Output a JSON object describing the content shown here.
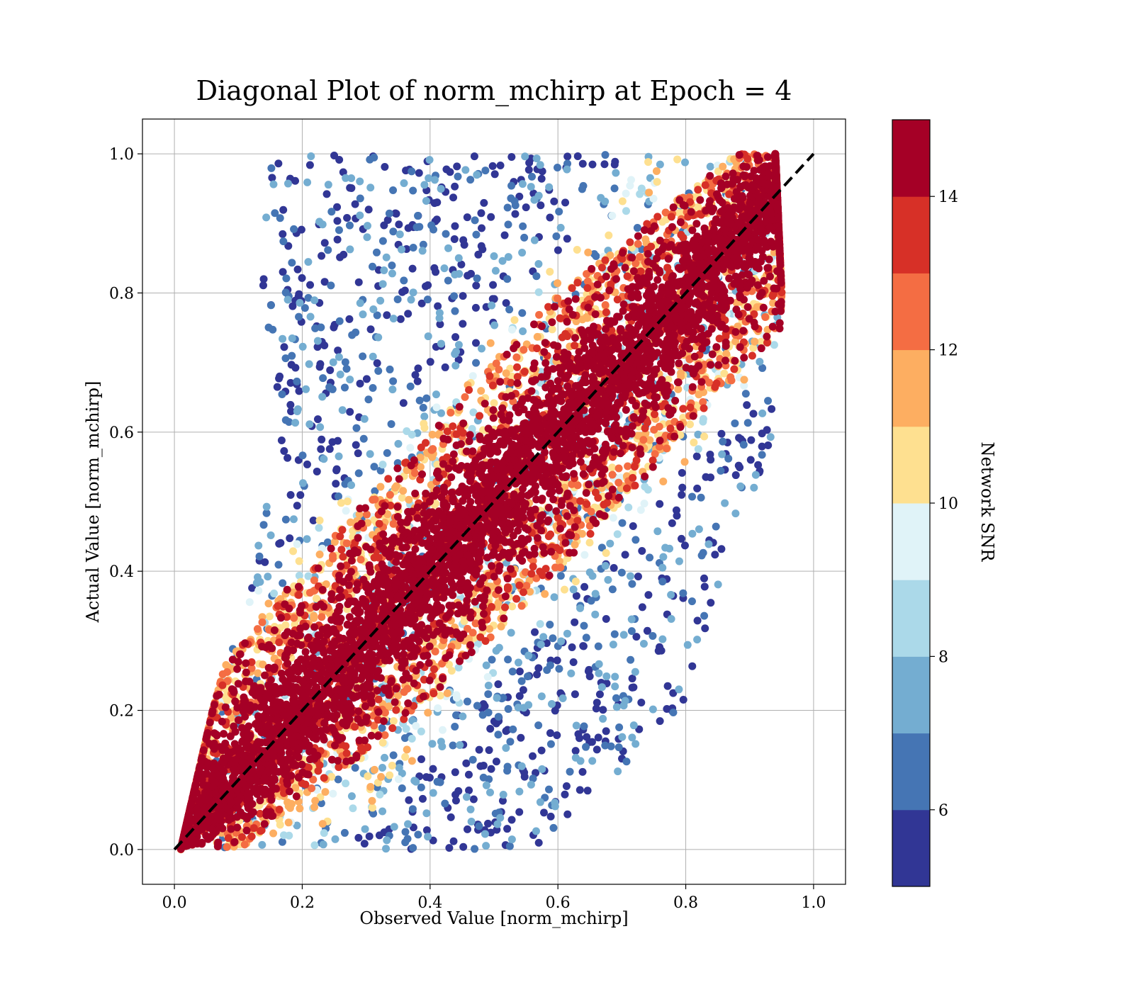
{
  "chart_data": {
    "type": "scatter",
    "title": "Diagonal Plot of norm_mchirp at Epoch = 4",
    "xlabel": "Observed Value [norm_mchirp]",
    "ylabel": "Actual Value [norm_mchirp]",
    "xlim": [
      -0.05,
      1.05
    ],
    "ylim": [
      -0.05,
      1.05
    ],
    "xticks": [
      0.0,
      0.2,
      0.4,
      0.6,
      0.8,
      1.0
    ],
    "xtick_labels": [
      "0.0",
      "0.2",
      "0.4",
      "0.6",
      "0.8",
      "1.0"
    ],
    "yticks": [
      0.0,
      0.2,
      0.4,
      0.6,
      0.8,
      1.0
    ],
    "ytick_labels": [
      "0.0",
      "0.2",
      "0.4",
      "0.6",
      "0.8",
      "1.0"
    ],
    "grid": true,
    "reference_line": {
      "x": [
        0,
        1
      ],
      "y": [
        0,
        1
      ],
      "style": "dashed",
      "color": "#000000"
    },
    "colorbar": {
      "label": "Network SNR",
      "range": [
        5,
        15
      ],
      "ticks": [
        6,
        8,
        10,
        12,
        14
      ],
      "tick_labels": [
        "6",
        "8",
        "10",
        "12",
        "14"
      ],
      "colors": [
        "#313695",
        "#4575b4",
        "#74add1",
        "#abd9e9",
        "#e0f3f8",
        "#fee090",
        "#fdae61",
        "#f46d43",
        "#d73027",
        "#a50026"
      ]
    },
    "point_density": [
      {
        "actual": 0.0,
        "observed_range": [
          0.01,
          0.56
        ],
        "high_snr_halfwidth": 0.05
      },
      {
        "actual": 0.2,
        "observed_range": [
          0.06,
          0.8
        ],
        "high_snr_halfwidth": 0.09
      },
      {
        "actual": 0.4,
        "observed_range": [
          0.12,
          0.86
        ],
        "high_snr_halfwidth": 0.1
      },
      {
        "actual": 0.6,
        "observed_range": [
          0.17,
          0.94
        ],
        "high_snr_halfwidth": 0.1
      },
      {
        "actual": 0.8,
        "observed_range": [
          0.13,
          0.95
        ],
        "high_snr_halfwidth": 0.1
      },
      {
        "actual": 1.0,
        "observed_range": [
          0.15,
          0.94
        ],
        "high_snr_halfwidth": 0.06
      }
    ]
  }
}
